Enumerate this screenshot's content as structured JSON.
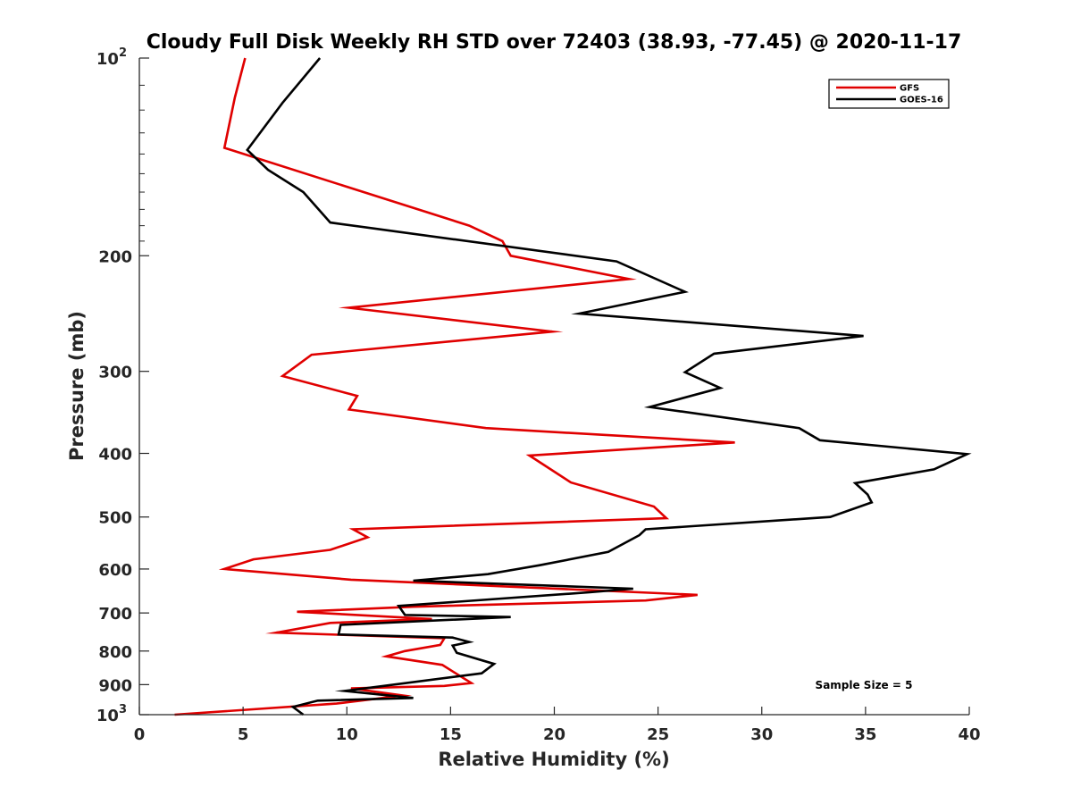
{
  "chart_data": {
    "type": "line",
    "title": "Cloudy Full Disk Weekly RH STD over 72403 (38.93, -77.45) @ 2020-11-17",
    "xlabel": "Relative Humidity (%)",
    "ylabel": "Pressure (mb)",
    "xlim": [
      0,
      40
    ],
    "ylim": [
      100,
      1000
    ],
    "y_scale": "log",
    "y_reversed": true,
    "x_ticks": [
      "0",
      "5",
      "10",
      "15",
      "20",
      "25",
      "30",
      "35",
      "40"
    ],
    "y_ticks": [
      {
        "value": 100,
        "base": "10",
        "exp": "2"
      },
      {
        "value": 200,
        "label": "200"
      },
      {
        "value": 300,
        "label": "300"
      },
      {
        "value": 400,
        "label": "400"
      },
      {
        "value": 500,
        "label": "500"
      },
      {
        "value": 600,
        "label": "600"
      },
      {
        "value": 700,
        "label": "700"
      },
      {
        "value": 800,
        "label": "800"
      },
      {
        "value": 900,
        "label": "900"
      },
      {
        "value": 1000,
        "base": "10",
        "exp": "3"
      }
    ],
    "grid": false,
    "legend_position": "top-right",
    "annotation": "Sample Size = 5",
    "series": [
      {
        "name": "GFS",
        "color": "#e00000",
        "points": [
          [
            5.1,
            100
          ],
          [
            4.6,
            115
          ],
          [
            4.1,
            137
          ],
          [
            15.9,
            180
          ],
          [
            17.5,
            190
          ],
          [
            17.9,
            200
          ],
          [
            23.6,
            217
          ],
          [
            10.1,
            240
          ],
          [
            19.9,
            261
          ],
          [
            8.3,
            283
          ],
          [
            6.9,
            305
          ],
          [
            10.5,
            327
          ],
          [
            10.1,
            343
          ],
          [
            16.7,
            366
          ],
          [
            28.7,
            385
          ],
          [
            18.8,
            403
          ],
          [
            20.8,
            443
          ],
          [
            24.8,
            482
          ],
          [
            25.4,
            502
          ],
          [
            10.3,
            522
          ],
          [
            11.0,
            537
          ],
          [
            9.2,
            561
          ],
          [
            5.5,
            580
          ],
          [
            4.1,
            600
          ],
          [
            10.2,
            623
          ],
          [
            26.9,
            657
          ],
          [
            24.4,
            670
          ],
          [
            13.2,
            685
          ],
          [
            7.6,
            697
          ],
          [
            14.1,
            715
          ],
          [
            9.2,
            725
          ],
          [
            6.6,
            750
          ],
          [
            14.7,
            765
          ],
          [
            14.5,
            783
          ],
          [
            12.8,
            800
          ],
          [
            11.9,
            815
          ],
          [
            14.6,
            840
          ],
          [
            16.0,
            895
          ],
          [
            14.7,
            904
          ],
          [
            10.2,
            912
          ],
          [
            12.7,
            935
          ],
          [
            9.5,
            962
          ],
          [
            1.7,
            1000
          ]
        ]
      },
      {
        "name": "GOES-16",
        "color": "#000000",
        "points": [
          [
            8.7,
            100
          ],
          [
            6.9,
            117
          ],
          [
            5.2,
            138
          ],
          [
            6.2,
            148
          ],
          [
            7.9,
            160
          ],
          [
            9.2,
            178
          ],
          [
            23.0,
            204
          ],
          [
            26.3,
            227
          ],
          [
            21.2,
            245
          ],
          [
            34.9,
            265
          ],
          [
            27.7,
            282
          ],
          [
            26.3,
            301
          ],
          [
            28.0,
            318
          ],
          [
            24.6,
            340
          ],
          [
            31.8,
            366
          ],
          [
            32.8,
            382
          ],
          [
            39.9,
            401
          ],
          [
            38.3,
            423
          ],
          [
            34.5,
            444
          ],
          [
            35.1,
            462
          ],
          [
            35.3,
            475
          ],
          [
            33.3,
            500
          ],
          [
            24.4,
            522
          ],
          [
            24.1,
            533
          ],
          [
            22.6,
            565
          ],
          [
            19.3,
            592
          ],
          [
            16.8,
            611
          ],
          [
            13.2,
            625
          ],
          [
            23.8,
            643
          ],
          [
            21.7,
            651
          ],
          [
            12.5,
            683
          ],
          [
            12.8,
            705
          ],
          [
            17.9,
            710
          ],
          [
            9.7,
            730
          ],
          [
            9.6,
            755
          ],
          [
            15.1,
            763
          ],
          [
            15.9,
            775
          ],
          [
            15.1,
            785
          ],
          [
            15.3,
            805
          ],
          [
            17.1,
            837
          ],
          [
            16.5,
            865
          ],
          [
            9.9,
            920
          ],
          [
            13.2,
            943
          ],
          [
            8.6,
            952
          ],
          [
            7.4,
            973
          ],
          [
            7.9,
            1000
          ]
        ]
      }
    ]
  }
}
